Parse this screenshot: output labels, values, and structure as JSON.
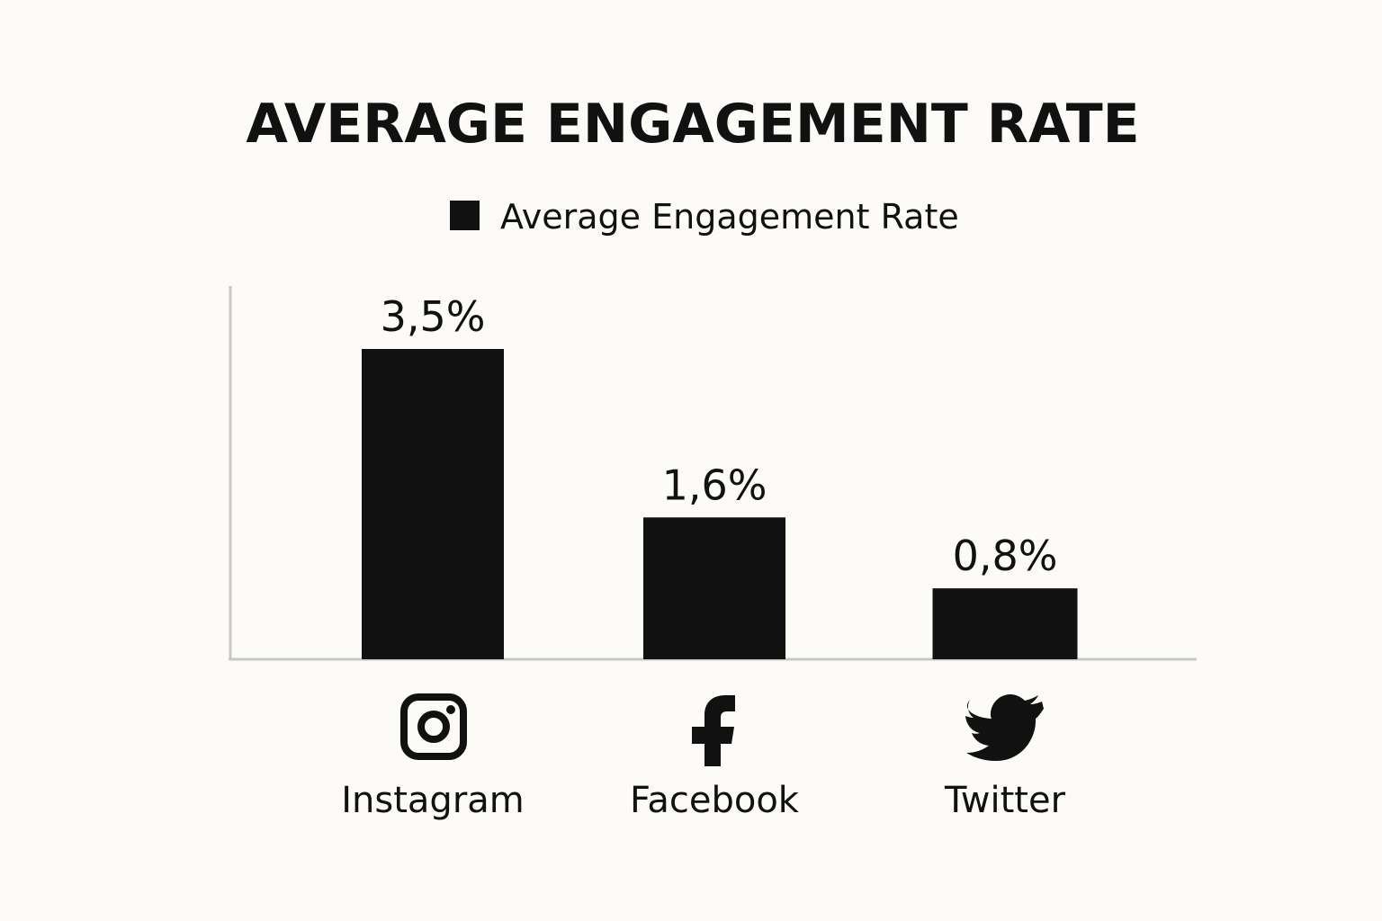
{
  "chart_data": {
    "type": "bar",
    "title": "AVERAGE ENGAGEMENT RATE",
    "legend": {
      "label": "Average Engagement Rate",
      "placement": "top-center"
    },
    "categories": [
      "Instagram",
      "Facebook",
      "Twitter"
    ],
    "series": [
      {
        "name": "Average Engagement Rate",
        "values": [
          3.5,
          1.6,
          0.8
        ]
      }
    ],
    "value_labels": [
      "3,5%",
      "1,6%",
      "0,8%"
    ],
    "category_icons": [
      "instagram-icon",
      "facebook-icon",
      "twitter-icon"
    ],
    "ylim": [
      0,
      4.2
    ],
    "grid": false,
    "xlabel": "",
    "ylabel": "",
    "colors": {
      "bar": "#111111",
      "axis": "#c8c8c8",
      "background": "#fcfbf8",
      "text": "#111111"
    }
  }
}
